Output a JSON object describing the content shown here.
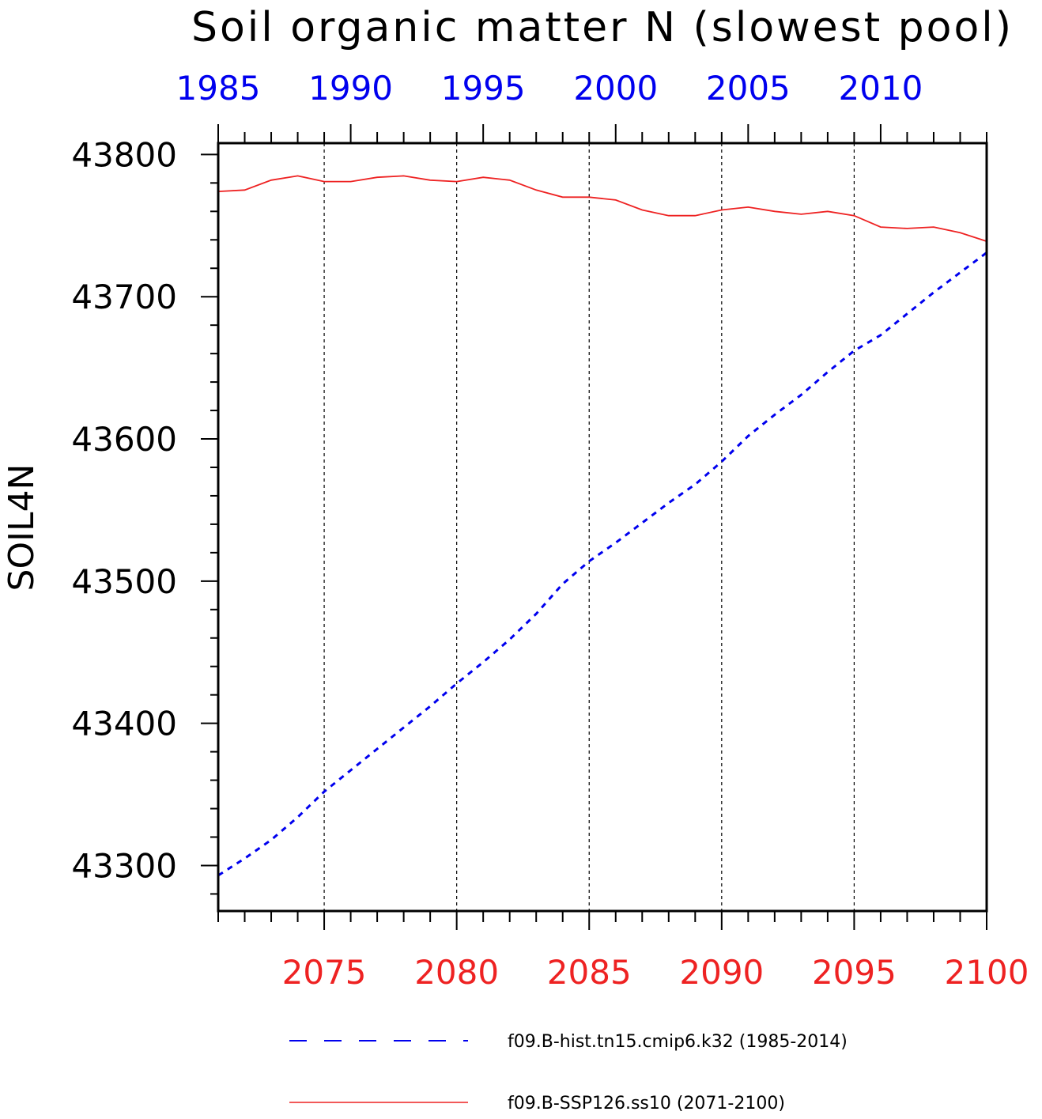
{
  "chart_data": {
    "type": "line",
    "title": "Soil organic matter N (slowest pool)",
    "ylabel": "SOIL4N",
    "xlabel": "",
    "ylim": [
      43268,
      43808
    ],
    "yticks": [
      43300,
      43400,
      43500,
      43600,
      43700,
      43800
    ],
    "top_axis": {
      "color": "#0000ee",
      "range": [
        1985,
        2014
      ],
      "ticks": [
        1985,
        1990,
        1995,
        2000,
        2005,
        2010
      ]
    },
    "bottom_axis": {
      "color": "#ee2222",
      "range": [
        2071,
        2100
      ],
      "ticks": [
        2075,
        2080,
        2085,
        2090,
        2095,
        2100
      ]
    },
    "grid": "vertical dashed at bottom-axis major ticks",
    "legend_position": "bottom",
    "series": [
      {
        "name": "f09.B-hist.tn15.cmip6.k32 (1985-2014)",
        "axis": "top",
        "color": "#0000ee",
        "style": "dashed",
        "x": [
          1985,
          1986,
          1987,
          1988,
          1989,
          1990,
          1991,
          1992,
          1993,
          1994,
          1995,
          1996,
          1997,
          1998,
          1999,
          2000,
          2001,
          2002,
          2003,
          2004,
          2005,
          2006,
          2007,
          2008,
          2009,
          2010,
          2011,
          2012,
          2013,
          2014
        ],
        "values": [
          43293,
          43305,
          43318,
          43334,
          43352,
          43367,
          43382,
          43397,
          43412,
          43428,
          43443,
          43459,
          43477,
          43498,
          43514,
          43527,
          43541,
          43555,
          43568,
          43584,
          43602,
          43617,
          43631,
          43647,
          43662,
          43673,
          43688,
          43703,
          43717,
          43731
        ]
      },
      {
        "name": "f09.B-SSP126.ss10 (2071-2100)",
        "axis": "bottom",
        "color": "#ee2222",
        "style": "solid",
        "x": [
          2071,
          2072,
          2073,
          2074,
          2075,
          2076,
          2077,
          2078,
          2079,
          2080,
          2081,
          2082,
          2083,
          2084,
          2085,
          2086,
          2087,
          2088,
          2089,
          2090,
          2091,
          2092,
          2093,
          2094,
          2095,
          2096,
          2097,
          2098,
          2099,
          2100
        ],
        "values": [
          43774,
          43775,
          43782,
          43785,
          43781,
          43781,
          43784,
          43785,
          43782,
          43781,
          43784,
          43782,
          43775,
          43770,
          43770,
          43768,
          43761,
          43757,
          43757,
          43761,
          43763,
          43760,
          43758,
          43760,
          43757,
          43749,
          43748,
          43749,
          43745,
          43739
        ]
      }
    ]
  }
}
